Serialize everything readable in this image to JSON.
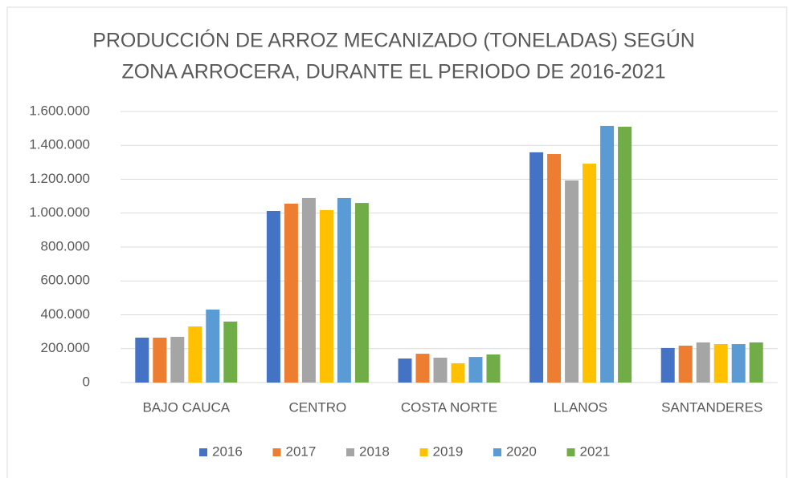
{
  "chart_data": {
    "type": "bar",
    "title": [
      "PRODUCCIÓN DE ARROZ MECANIZADO (TONELADAS)  SEGÚN",
      "ZONA ARROCERA, DURANTE EL PERIODO DE 2016-2021"
    ],
    "categories": [
      "BAJO CAUCA",
      "CENTRO",
      "COSTA NORTE",
      "LLANOS",
      "SANTANDERES"
    ],
    "series": [
      {
        "name": "2016",
        "color": "#4472c4",
        "values": [
          265000,
          1013000,
          142000,
          1359000,
          204000
        ]
      },
      {
        "name": "2017",
        "color": "#ed7d31",
        "values": [
          265000,
          1056000,
          170000,
          1349000,
          218000
        ]
      },
      {
        "name": "2018",
        "color": "#a5a5a5",
        "values": [
          270000,
          1089000,
          147000,
          1193000,
          237000
        ]
      },
      {
        "name": "2019",
        "color": "#ffc000",
        "values": [
          331000,
          1018000,
          114000,
          1292000,
          227000
        ]
      },
      {
        "name": "2020",
        "color": "#5b9bd5",
        "values": [
          431000,
          1089000,
          151000,
          1515000,
          227000
        ]
      },
      {
        "name": "2021",
        "color": "#70ad47",
        "values": [
          360000,
          1060000,
          166000,
          1510000,
          237000
        ]
      }
    ],
    "ylim": [
      0,
      1600000
    ],
    "yticks": [
      0,
      {
        "value": 200000,
        "label": "200.000"
      },
      {
        "value": 400000,
        "label": "400.000"
      },
      {
        "value": 600000,
        "label": "600.000"
      },
      {
        "value": 800000,
        "label": "800.000"
      },
      {
        "value": 1000000,
        "label": "1.000.000"
      },
      {
        "value": 1200000,
        "label": "1.200.000"
      },
      {
        "value": 1400000,
        "label": "1.400.000"
      },
      {
        "value": 1600000,
        "label": "1.600.000"
      }
    ],
    "grid": true,
    "legend": "bottom"
  }
}
